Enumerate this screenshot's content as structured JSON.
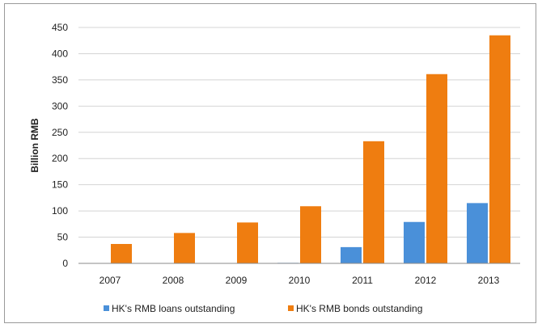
{
  "chart_data": {
    "type": "bar",
    "categories": [
      "2007",
      "2008",
      "2009",
      "2010",
      "2011",
      "2012",
      "2013"
    ],
    "series": [
      {
        "name": "HK's RMB loans outstanding",
        "color": "#4a90d9",
        "values": [
          0,
          0,
          0,
          1,
          31,
          79,
          115
        ]
      },
      {
        "name": "HK's RMB bonds outstanding",
        "color": "#ef7d10",
        "values": [
          37,
          58,
          78,
          109,
          233,
          361,
          435
        ]
      }
    ],
    "xlabel": "",
    "ylabel": "Billion RMB",
    "ylim": [
      0,
      450
    ],
    "yticks": [
      0,
      50,
      100,
      150,
      200,
      250,
      300,
      350,
      400,
      450
    ],
    "grid": true,
    "legend": "bottom"
  }
}
